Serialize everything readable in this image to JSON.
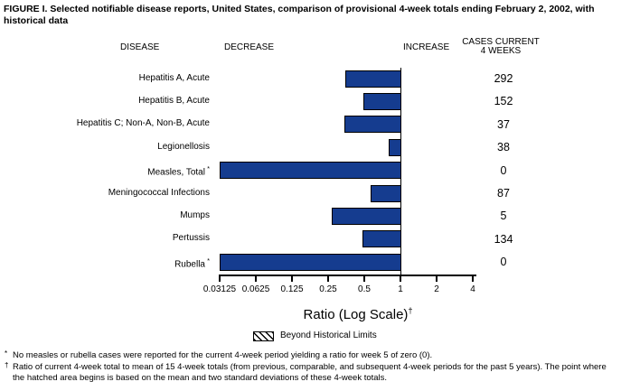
{
  "title": "FIGURE I. Selected notifiable disease reports, United States, comparison of provisional 4-week totals ending February 2, 2002, with historical data",
  "columns": {
    "disease": "DISEASE",
    "decrease": "DECREASE",
    "increase": "INCREASE",
    "cases_line1": "CASES CURRENT",
    "cases_line2": "4 WEEKS"
  },
  "chart_data": {
    "type": "bar",
    "orientation": "horizontal",
    "title": "Selected notifiable disease reports, United States, comparison of provisional 4-week totals ending February 2, 2002, with historical data",
    "xlabel": "Ratio (Log Scale)",
    "xlabel_marker": "†",
    "x_scale": "log2",
    "xlim": [
      0.03125,
      4
    ],
    "x_ticks": [
      "0.03125",
      "0.0625",
      "0.125",
      "0.25",
      "0.5",
      "1",
      "2",
      "4"
    ],
    "baseline_ratio": 1,
    "grid": false,
    "bar_color": "#153C8F",
    "bar_border_color": "#000000",
    "rows": [
      {
        "label": "Hepatitis A, Acute",
        "marker": "",
        "ratio": 0.35,
        "cases": "292"
      },
      {
        "label": "Hepatitis B, Acute",
        "marker": "",
        "ratio": 0.49,
        "cases": "152"
      },
      {
        "label": "Hepatitis C; Non-A, Non-B, Acute",
        "marker": "",
        "ratio": 0.34,
        "cases": "37"
      },
      {
        "label": "Legionellosis",
        "marker": "",
        "ratio": 0.8,
        "cases": "38"
      },
      {
        "label": "Measles, Total",
        "marker": "*",
        "ratio": 0,
        "cases": "0"
      },
      {
        "label": "Meningococcal Infections",
        "marker": "",
        "ratio": 0.56,
        "cases": "87"
      },
      {
        "label": "Mumps",
        "marker": "",
        "ratio": 0.27,
        "cases": "5"
      },
      {
        "label": "Pertussis",
        "marker": "",
        "ratio": 0.48,
        "cases": "134"
      },
      {
        "label": "Rubella",
        "marker": "*",
        "ratio": 0,
        "cases": "0"
      }
    ],
    "legend": {
      "swatch": "hatched",
      "label": "Beyond Historical Limits",
      "position": "bottom"
    }
  },
  "footnotes": [
    {
      "marker": "*",
      "text": "No measles or rubella cases were reported for the current 4-week period yielding a ratio for week 5 of zero (0)."
    },
    {
      "marker": "†",
      "text": "Ratio of current 4-week total to mean of 15 4-week totals (from previous, comparable, and subsequent 4-week periods for the past 5 years). The point where the hatched area begins is based on the mean and two standard deviations of these 4-week totals."
    }
  ]
}
